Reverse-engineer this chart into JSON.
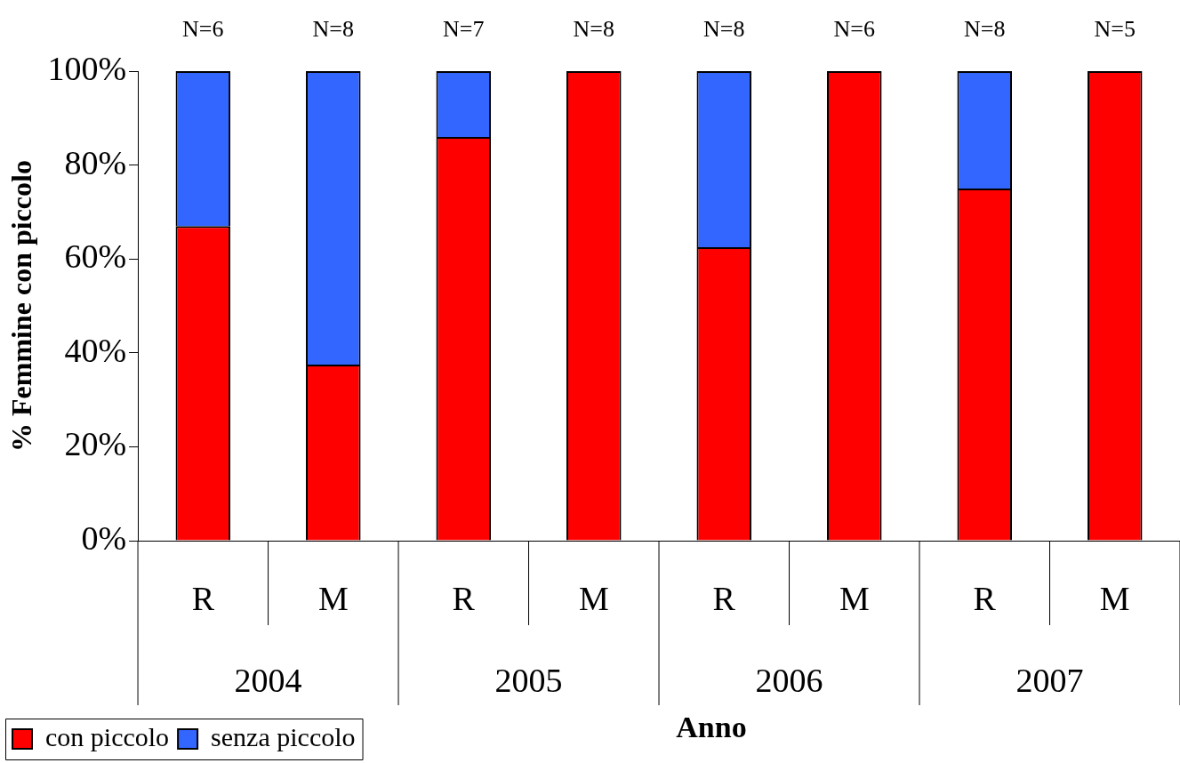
{
  "chart_data": {
    "type": "bar",
    "stacked": true,
    "categories": [
      "R",
      "M",
      "R",
      "M",
      "R",
      "M",
      "R",
      "M"
    ],
    "series": [
      {
        "name": "con piccolo",
        "color": "#ff0000",
        "values": [
          67,
          37.5,
          86,
          100,
          62.5,
          100,
          75,
          100
        ]
      },
      {
        "name": "senza piccolo",
        "color": "#3366ff",
        "values": [
          33,
          62.5,
          14,
          0,
          37.5,
          0,
          25,
          0
        ]
      }
    ],
    "ylim": [
      0,
      100
    ],
    "yticks": [
      {
        "value": 0,
        "label": "0%"
      },
      {
        "value": 20,
        "label": "20%"
      },
      {
        "value": 40,
        "label": "40%"
      },
      {
        "value": 60,
        "label": "60%"
      },
      {
        "value": 80,
        "label": "80%"
      },
      {
        "value": 100,
        "label": "100%"
      }
    ],
    "ylabel": "% Femmine con piccolo",
    "xlabel": "Anno",
    "grid": false,
    "legend": "bottom left",
    "annotations": [
      "N=6",
      "N=8",
      "N=7",
      "N=8",
      "N=8",
      "N=6",
      "N=8",
      "N=5",
      "2004",
      "2005",
      "2006",
      "2007"
    ]
  }
}
